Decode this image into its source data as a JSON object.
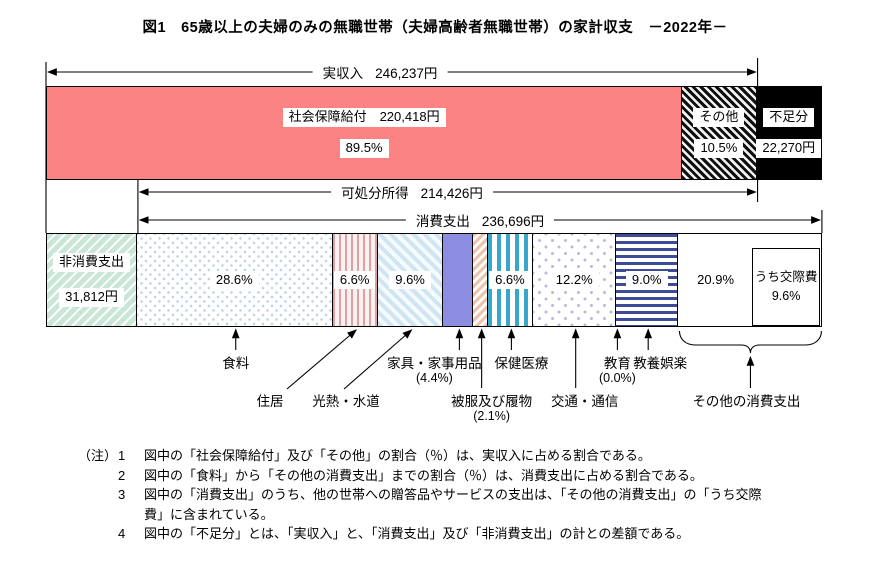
{
  "title": "図1　65歳以上の夫婦のみの無職世帯（夫婦高齢者無職世帯）の家計収支　－2022年－",
  "chart_data": {
    "type": "bar",
    "subtype": "stacked-horizontal-composition",
    "year": "2022",
    "unit": "円",
    "colors": {
      "social_security": "#fb8383",
      "shortfall": "#000000",
      "non_consumption_green": "#c9e6d6",
      "health_teal": "#39a7cb",
      "furniture_periwinkle": "#8c8ce0",
      "recreation_navy": "#3d4c97"
    },
    "income": {
      "total_label": "実収入",
      "total_value": "246,237円",
      "total_amount": 246237,
      "segments": [
        {
          "name": "社会保障給付",
          "amount_label": "220,418円",
          "amount": 220418,
          "pct": 89.5,
          "pct_label": "89.5%",
          "pattern": "solid-pink"
        },
        {
          "name": "その他",
          "pct": 10.5,
          "pct_label": "10.5%",
          "pattern": "black-diag"
        }
      ],
      "shortfall": {
        "name": "不足分",
        "value": "22,270円",
        "amount": 22270,
        "pattern": "solid-black"
      }
    },
    "disposable_income": {
      "label": "可処分所得",
      "value": "214,426円",
      "amount": 214426
    },
    "consumption": {
      "label": "消費支出",
      "value": "236,696円",
      "amount": 236696
    },
    "non_consumption": {
      "name": "非消費支出",
      "value": "31,812円",
      "amount": 31812,
      "pattern": "green-diag"
    },
    "expenditure_segments": [
      {
        "name": "食料",
        "pct": 28.6,
        "pct_label": "28.6%",
        "pattern": "dots-blue"
      },
      {
        "name": "住居",
        "pct": 6.6,
        "pct_label": "6.6%",
        "pattern": "stripes-v-pink"
      },
      {
        "name": "光熱・水道",
        "pct": 9.6,
        "pct_label": "9.6%",
        "pattern": "blue-diag"
      },
      {
        "name": "家具・家事用品",
        "pct": 4.4,
        "sub_label": "(4.4%)",
        "pattern": "solid-periwinkle"
      },
      {
        "name": "被服及び履物",
        "pct": 2.1,
        "sub_label": "(2.1%)",
        "pattern": "pink-diag"
      },
      {
        "name": "保健医療",
        "pct": 6.6,
        "pct_label": "6.6%",
        "pattern": "stripes-v-teal"
      },
      {
        "name": "交通・通信",
        "pct": 12.2,
        "pct_label": "12.2%",
        "pattern": "dots-gray"
      },
      {
        "name": "教育",
        "pct": 0.0,
        "sub_label": "(0.0%)",
        "pattern": "none"
      },
      {
        "name": "教養娯楽",
        "pct": 9.0,
        "pct_label": "9.0%",
        "pattern": "stripes-h-navy"
      },
      {
        "name": "その他の消費支出",
        "pct": 20.9,
        "pct_label": "20.9%",
        "pattern": "white",
        "inner_box": {
          "label": "うち交際費",
          "pct_label": "9.6%",
          "pct": 9.6
        }
      }
    ]
  },
  "notes": {
    "prefix": "（注）",
    "items": [
      {
        "num": "1",
        "text": "図中の「社会保障給付」及び「その他」の割合（％）は、実収入に占める割合である。"
      },
      {
        "num": "2",
        "text": "図中の「食料」から「その他の消費支出」までの割合（％）は、消費支出に占める割合である。"
      },
      {
        "num": "3",
        "text": "図中の「消費支出」のうち、他の世帯への贈答品やサービスの支出は、「その他の消費支出」の「うち交際費」に含まれている。"
      },
      {
        "num": "4",
        "text": "図中の「不足分」とは、「実収入」と、「消費支出」及び「非消費支出」の計との差額である。"
      }
    ]
  }
}
